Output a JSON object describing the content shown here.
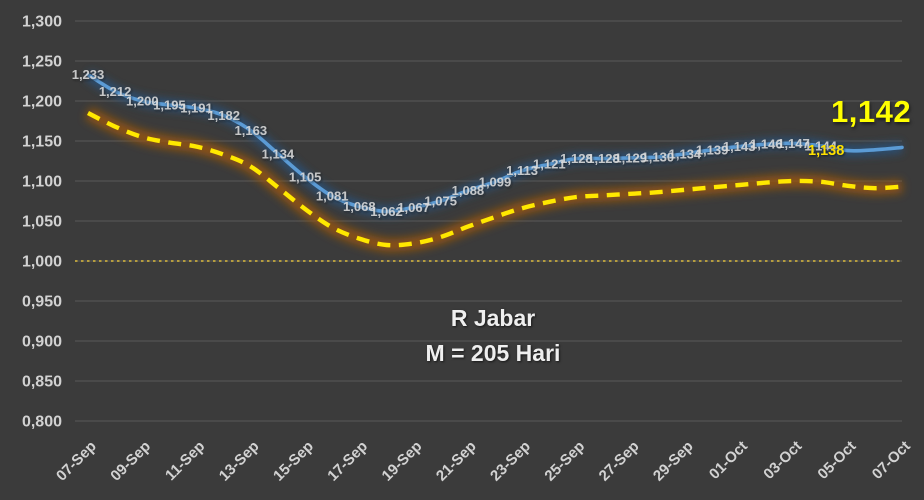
{
  "annotations": {
    "region": "R Jabar",
    "duration": "M = 205 Hari",
    "final_value": "1,142",
    "secondary_value": "1,138"
  },
  "colors": {
    "background": "#3B3B3B",
    "gridline": "#5A5A5A",
    "blue_line": "#5B9BD5",
    "blue_glow": "#2B4F74",
    "yellow_line": "#FFE800",
    "yellow_glow": "#9C5708",
    "threshold_line": "#E0BE3F",
    "tick_label": "#D2D2D2",
    "data_label": "#DCDCDC",
    "callout": "#FFFF00"
  },
  "chart_data": {
    "type": "line",
    "title": "R Jabar",
    "subtitle": "M = 205 Hari",
    "grid": true,
    "legend": "none",
    "ylim": [
      0.8,
      1.3
    ],
    "y_tick_labels": [
      "1,300",
      "1,250",
      "1,200",
      "1,150",
      "1,100",
      "1,050",
      "1,000",
      "0,950",
      "0,900",
      "0,850",
      "0,800"
    ],
    "x_tick_labels": [
      "07-Sep",
      "09-Sep",
      "11-Sep",
      "13-Sep",
      "15-Sep",
      "17-Sep",
      "19-Sep",
      "21-Sep",
      "23-Sep",
      "25-Sep",
      "27-Sep",
      "29-Sep",
      "01-Oct",
      "03-Oct",
      "05-Oct",
      "07-Oct"
    ],
    "x": [
      "07-Sep",
      "08-Sep",
      "09-Sep",
      "10-Sep",
      "11-Sep",
      "12-Sep",
      "13-Sep",
      "14-Sep",
      "15-Sep",
      "16-Sep",
      "17-Sep",
      "18-Sep",
      "19-Sep",
      "20-Sep",
      "21-Sep",
      "22-Sep",
      "23-Sep",
      "24-Sep",
      "25-Sep",
      "26-Sep",
      "27-Sep",
      "28-Sep",
      "29-Sep",
      "30-Sep",
      "01-Oct",
      "02-Oct",
      "03-Oct",
      "04-Oct",
      "05-Oct",
      "06-Oct",
      "07-Oct"
    ],
    "series": [
      {
        "name": "r-daily-blue-line",
        "style": "smooth-solid-glow",
        "color": "#5B9BD5",
        "values": [
          1.233,
          1.212,
          1.2,
          1.195,
          1.191,
          1.182,
          1.163,
          1.134,
          1.105,
          1.081,
          1.068,
          1.062,
          1.067,
          1.075,
          1.088,
          1.099,
          1.113,
          1.121,
          1.128,
          1.128,
          1.129,
          1.13,
          1.134,
          1.139,
          1.143,
          1.146,
          1.147,
          1.144,
          1.138,
          1.139,
          1.142
        ],
        "point_labels": [
          "1,233",
          "1,212",
          "1,200",
          "1,195",
          "1,191",
          "1,182",
          "1,163",
          "1,134",
          "1,105",
          "1,081",
          "1,068",
          "1,062",
          "1,067",
          "1,075",
          "1,088",
          "1,099",
          "1,113",
          "1,121",
          "1,128",
          "1,128",
          "1,129",
          "1,130",
          "1,134",
          "1,139",
          "1,143",
          "1,146",
          "1,147",
          "1,144",
          "",
          "",
          ""
        ]
      },
      {
        "name": "r-band-yellow-dashed-line",
        "style": "smooth-dashed-glow",
        "color": "#FFE800",
        "values": [
          1.185,
          1.168,
          1.155,
          1.148,
          1.143,
          1.133,
          1.118,
          1.092,
          1.065,
          1.042,
          1.028,
          1.02,
          1.022,
          1.03,
          1.043,
          1.055,
          1.066,
          1.074,
          1.08,
          1.082,
          1.084,
          1.086,
          1.089,
          1.092,
          1.095,
          1.098,
          1.1,
          1.099,
          1.094,
          1.091,
          1.093
        ]
      },
      {
        "name": "threshold-r-equals-one",
        "style": "dotted-horizontal",
        "color": "#E0BE3F",
        "constant": 1.0
      }
    ]
  }
}
